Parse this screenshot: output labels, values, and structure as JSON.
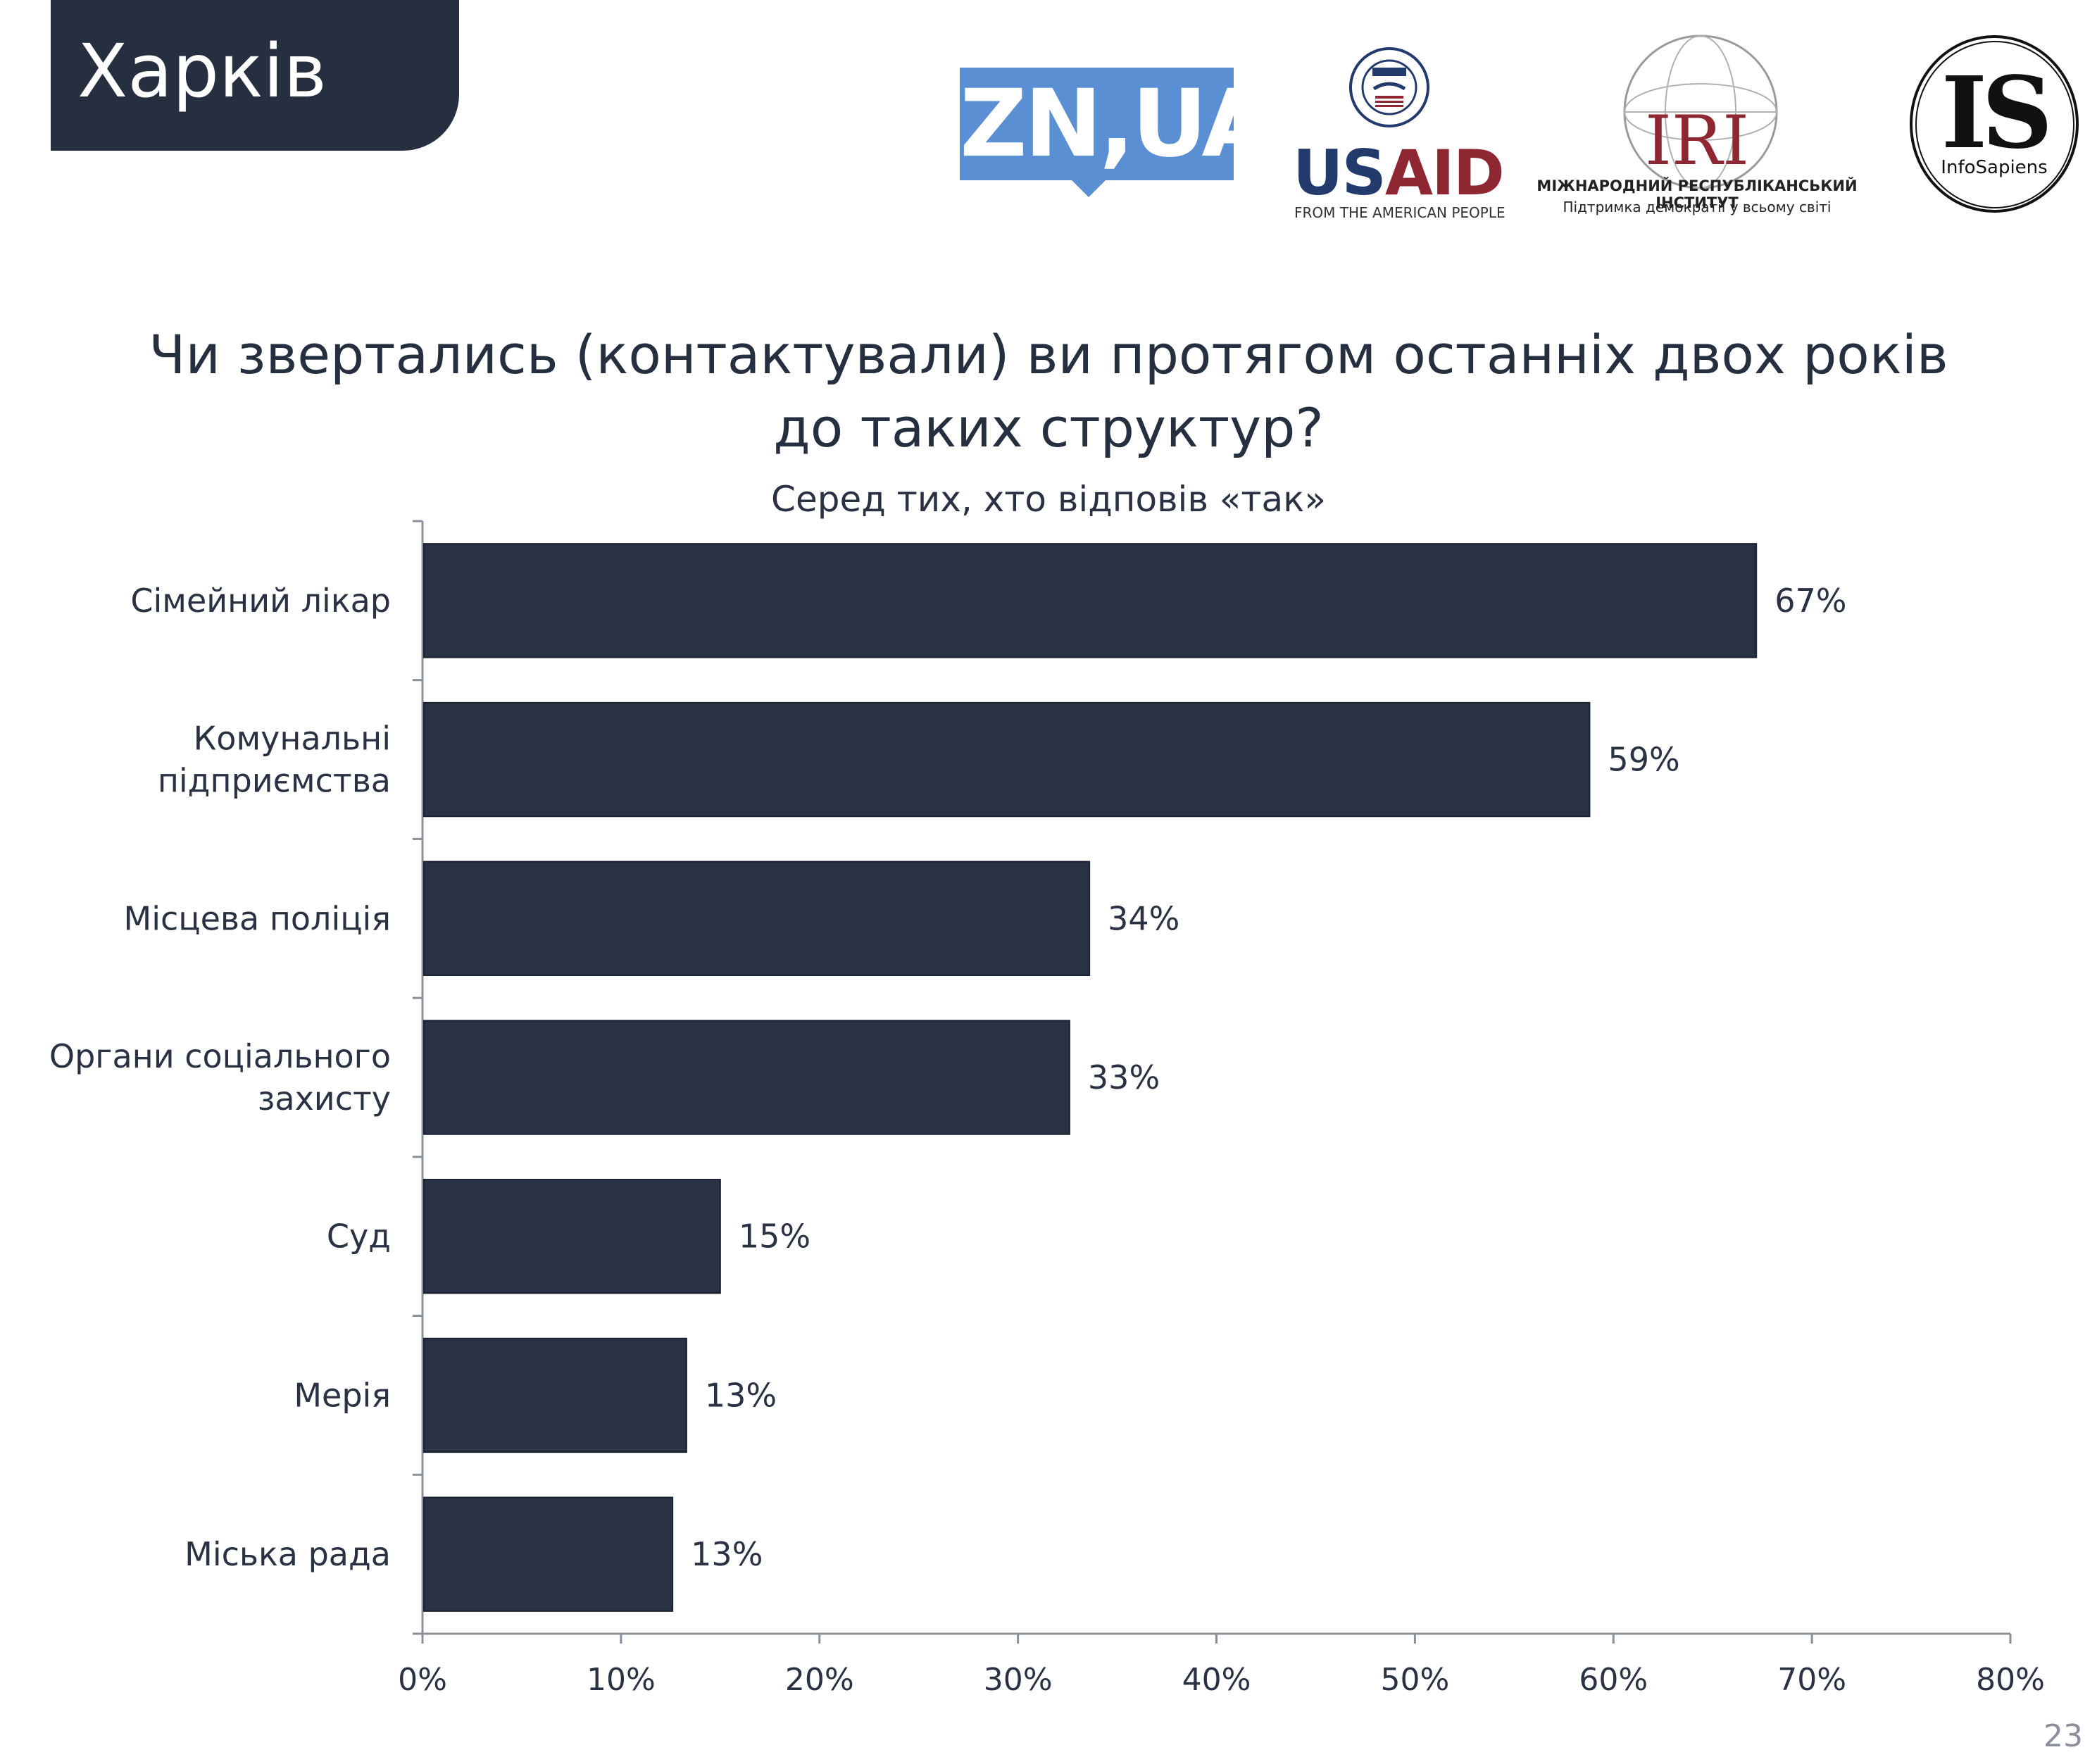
{
  "header": {
    "city": "Харків"
  },
  "logos": {
    "zn": "ZN,UA",
    "usaid_us": "US",
    "usaid_aid": "AID",
    "usaid_tagline": "FROM THE AMERICAN PEOPLE",
    "iri": "IRI",
    "iri_line1": "МІЖНАРОДНИЙ РЕСПУБЛІКАНСЬКИЙ ІНСТИТУТ",
    "iri_line2": "Підтримка демократії у всьому світі",
    "is_mark": "IS",
    "is_name": "InfoSapiens"
  },
  "page_number": "23",
  "chart_data": {
    "type": "bar",
    "orientation": "horizontal",
    "title_lines": [
      "Чи звертались (контактували) ви протягом останніх двох років",
      "до таких структур?"
    ],
    "subtitle": "Серед тих, хто відповів «так»",
    "categories": [
      [
        "Сімейний лікар"
      ],
      [
        "Комунальні",
        "підприємства"
      ],
      [
        "Місцева поліція"
      ],
      [
        "Органи соціального",
        "захисту"
      ],
      [
        "Суд"
      ],
      [
        "Мерія"
      ],
      [
        "Міська рада"
      ]
    ],
    "values": [
      67.2,
      58.8,
      33.6,
      32.6,
      15.0,
      13.3,
      12.6
    ],
    "value_labels": [
      "67%",
      "59%",
      "34%",
      "33%",
      "15%",
      "13%",
      "13%"
    ],
    "xlim": [
      0,
      80
    ],
    "xticks": [
      0,
      10,
      20,
      30,
      40,
      50,
      60,
      70,
      80
    ],
    "xtick_labels": [
      "0%",
      "10%",
      "20%",
      "30%",
      "40%",
      "50%",
      "60%",
      "70%",
      "80%"
    ],
    "bar_color": "#283244",
    "grid": false,
    "legend": "none"
  }
}
